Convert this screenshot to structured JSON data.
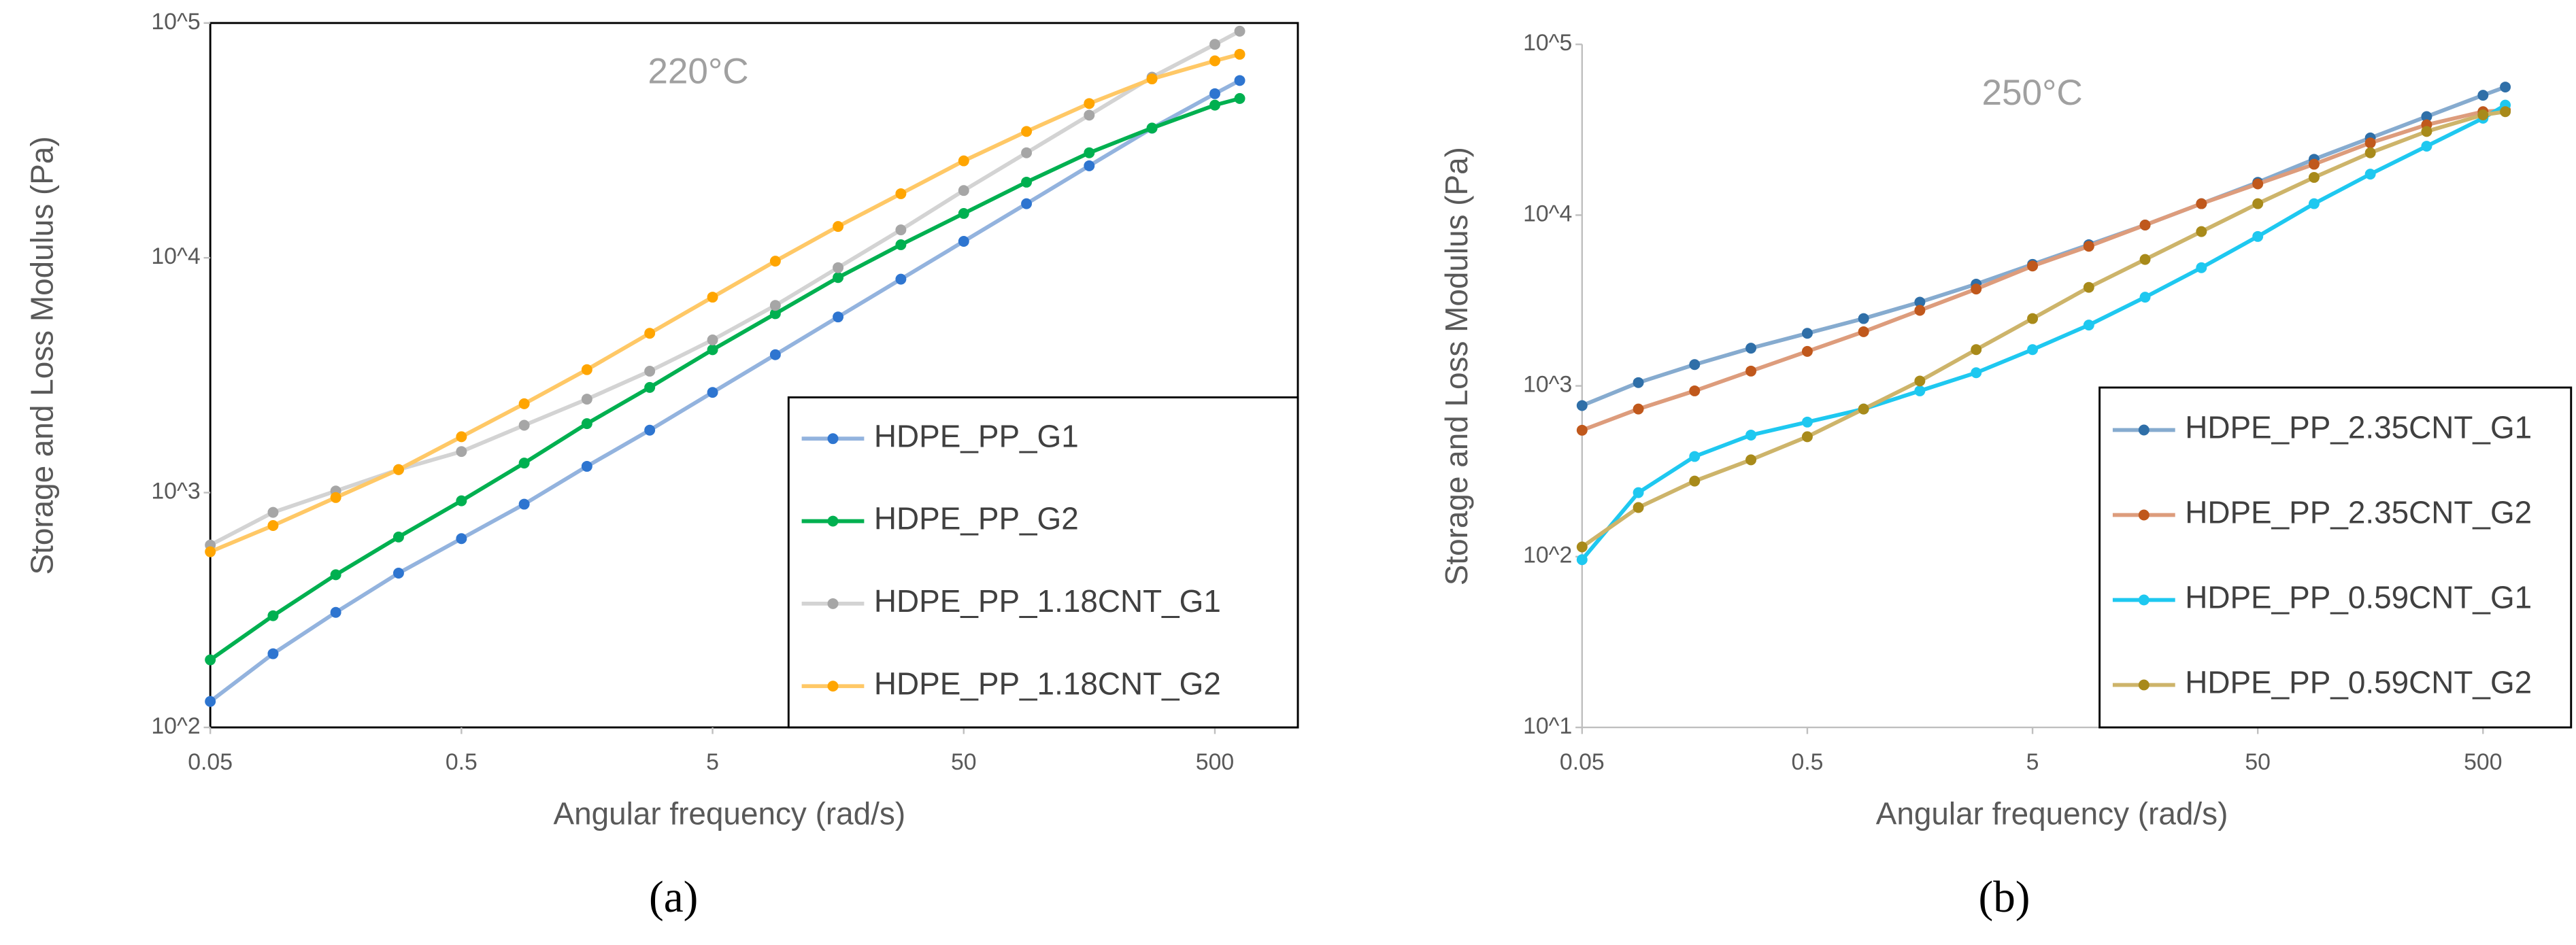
{
  "chart_data": [
    {
      "type": "line",
      "caption": "(a)",
      "annotation": "220°C",
      "frame": true,
      "legend": "lower right",
      "x_label": "Angular frequency (rad/s)",
      "y_label": "Storage and Loss Modulus (Pa)",
      "xscale": "log",
      "yscale": "log",
      "x": [
        0.05,
        0.0889,
        0.158,
        0.281,
        0.5,
        0.889,
        1.58,
        2.81,
        5,
        8.89,
        15.8,
        28.1,
        50,
        88.9,
        158,
        281,
        500,
        628
      ],
      "xlim": [
        0.05,
        1070
      ],
      "xticks": [
        0.05,
        0.5,
        5,
        50,
        500
      ],
      "ylim": [
        100,
        100000
      ],
      "yticks": [
        {
          "value": 100,
          "label": "10^2"
        },
        {
          "value": 1000,
          "label": "10^3"
        },
        {
          "value": 10000,
          "label": "10^4"
        },
        {
          "value": 100000,
          "label": "10^5"
        }
      ],
      "series": [
        {
          "name": "HDPE_PP_G1",
          "color": "#2e75d0",
          "line_color": "#93b3de",
          "values": [
            129,
            206,
            309,
            454,
            637,
            893,
            1294,
            1845,
            2672,
            3867,
            5600,
            8110,
            11750,
            17000,
            24650,
            35650,
            50000,
            56900
          ]
        },
        {
          "name": "HDPE_PP_G2",
          "color": "#00b050",
          "line_color": "#00b050",
          "values": [
            194,
            299,
            447,
            647,
            923,
            1336,
            1967,
            2805,
            4060,
            5780,
            8240,
            11370,
            15450,
            21000,
            28000,
            35700,
            44700,
            47700
          ]
        },
        {
          "name": "HDPE_PP_1.18CNT_G1",
          "color": "#a6a6a6",
          "line_color": "#d3d3d3",
          "values": [
            598,
            824,
            1016,
            1253,
            1496,
            1936,
            2500,
            3290,
            4470,
            6270,
            9080,
            13150,
            19350,
            28000,
            40500,
            58800,
            81100,
            92300
          ]
        },
        {
          "name": "HDPE_PP_1.18CNT_G2",
          "color": "#ffa500",
          "line_color": "#ffc866",
          "values": [
            560,
            724,
            953,
            1253,
            1730,
            2390,
            3340,
            4770,
            6800,
            9680,
            13600,
            18750,
            25880,
            34530,
            45400,
            57800,
            69000,
            73600
          ]
        }
      ]
    },
    {
      "type": "line",
      "caption": "(b)",
      "annotation": "250°C",
      "frame": false,
      "legend": "lower right",
      "x_label": "Angular frequency (rad/s)",
      "y_label": "Storage and Loss Modulus (Pa)",
      "xscale": "log",
      "yscale": "log",
      "x": [
        0.05,
        0.0889,
        0.158,
        0.281,
        0.5,
        0.889,
        1.58,
        2.81,
        5,
        8.89,
        15.8,
        28.1,
        50,
        88.9,
        158,
        281,
        500,
        628
      ],
      "xlim": [
        0.05,
        1230
      ],
      "xticks": [
        0.05,
        0.5,
        5,
        50,
        500
      ],
      "ylim": [
        10,
        100000
      ],
      "yticks": [
        {
          "value": 10,
          "label": "10^1"
        },
        {
          "value": 100,
          "label": "10^2"
        },
        {
          "value": 1000,
          "label": "10^3"
        },
        {
          "value": 10000,
          "label": "10^4"
        },
        {
          "value": 100000,
          "label": "10^5"
        }
      ],
      "series": [
        {
          "name": "HDPE_PP_2.35CNT_G1",
          "color": "#2f6fa8",
          "line_color": "#86abcf",
          "values": [
            767,
            1045,
            1333,
            1663,
            2032,
            2479,
            3093,
            3944,
            5150,
            6710,
            8750,
            11670,
            15560,
            21230,
            28310,
            37760,
            50350,
            56230
          ]
        },
        {
          "name": "HDPE_PP_2.35CNT_G2",
          "color": "#c0581c",
          "line_color": "#dd9c7c",
          "values": [
            550,
            732,
            935,
            1221,
            1592,
            2076,
            2769,
            3692,
            5035,
            6570,
            8750,
            11670,
            15230,
            19860,
            26480,
            33810,
            40360,
            41200
          ]
        },
        {
          "name": "HDPE_PP_0.59CNT_G1",
          "color": "#1ec8f0",
          "line_color": "#1ec8f0",
          "values": [
            96,
            237,
            386,
            515,
            614,
            732,
            935,
            1194,
            1631,
            2271,
            3307,
            4922,
            7500,
            11670,
            17380,
            25330,
            36930,
            44090
          ]
        },
        {
          "name": "HDPE_PP_0.59CNT_G2",
          "color": "#a88a1a",
          "line_color": "#cdb46a",
          "values": [
            114,
            194,
            277,
            369,
            504,
            732,
            1068,
            1631,
            2479,
            3776,
            5500,
            8010,
            11670,
            16630,
            23170,
            30900,
            38620,
            40360
          ]
        }
      ]
    }
  ]
}
